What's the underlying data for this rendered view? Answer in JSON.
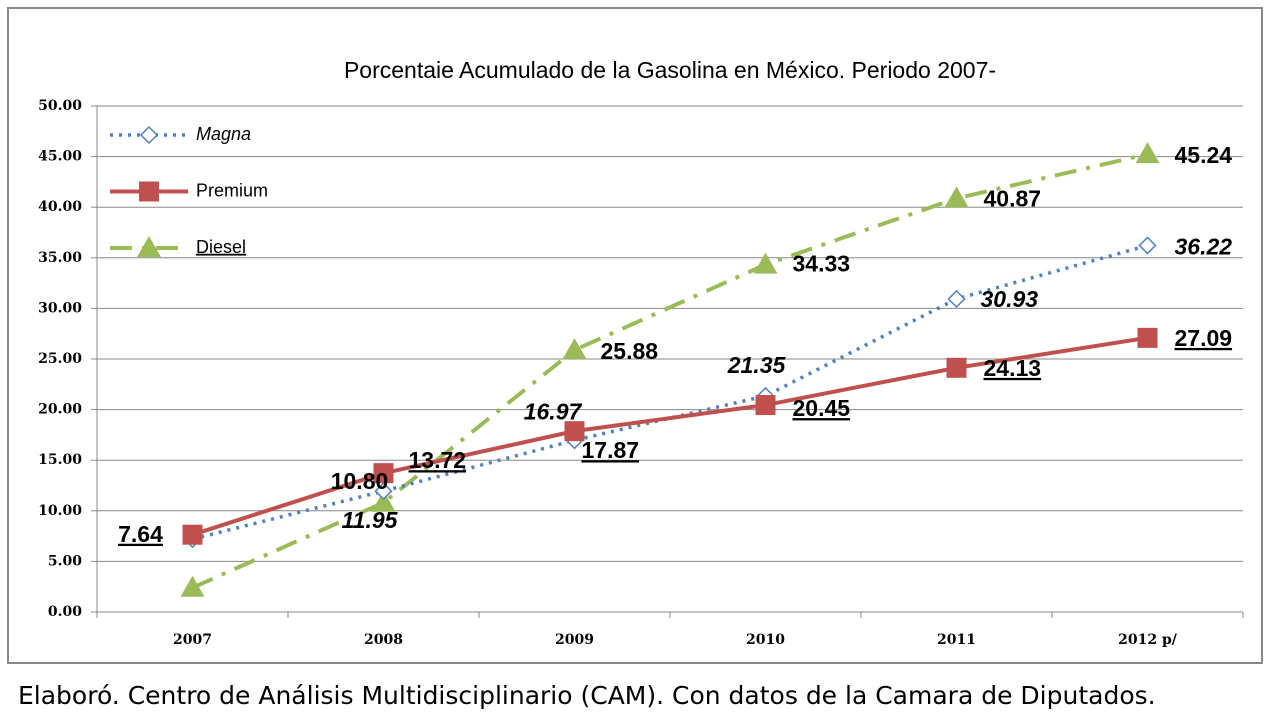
{
  "chart_data": {
    "type": "line",
    "title": "Porcentaie Acumulado de la Gasolina  en México. Periodo 2007-",
    "footer": "Elaboró. Centro de Análisis Multidisciplinario (CAM). Con datos de la Camara de Diputados.",
    "categories": [
      "2007",
      "2008",
      "2009",
      "2010",
      "2011",
      "2012 p/"
    ],
    "series": [
      {
        "name": "Magna",
        "color": "#4f81bd",
        "values": [
          7.2,
          11.95,
          16.97,
          21.35,
          30.93,
          36.22
        ],
        "value_labels": [
          null,
          "11.95",
          "16.97",
          "21.35",
          "30.93",
          "36.22"
        ]
      },
      {
        "name": "Premium",
        "color": "#c0504d",
        "values": [
          7.64,
          13.72,
          17.87,
          20.45,
          24.13,
          27.09
        ],
        "value_labels": [
          "7.64",
          "13.72",
          "17.87",
          "20.45",
          "24.13",
          "27.09"
        ]
      },
      {
        "name": "Diesel",
        "color": "#9bbb59",
        "values": [
          2.4,
          10.8,
          25.88,
          34.33,
          40.87,
          45.24
        ],
        "value_labels": [
          null,
          "10.80",
          "25.88",
          "34.33",
          "40.87",
          "45.24"
        ]
      }
    ],
    "ylim": [
      0,
      50
    ],
    "yticks": [
      {
        "value": 0,
        "label": "0.00"
      },
      {
        "value": 5,
        "label": "5.00"
      },
      {
        "value": 10,
        "label": "10.00"
      },
      {
        "value": 15,
        "label": "15.00"
      },
      {
        "value": 20,
        "label": "20.00"
      },
      {
        "value": 25,
        "label": "25.00"
      },
      {
        "value": 30,
        "label": "30.00"
      },
      {
        "value": 35,
        "label": "35.00"
      },
      {
        "value": 40,
        "label": "40.00"
      },
      {
        "value": 45,
        "label": "45.00"
      },
      {
        "value": 50,
        "label": "50.00"
      }
    ],
    "grid": true,
    "legend": "upper left"
  }
}
